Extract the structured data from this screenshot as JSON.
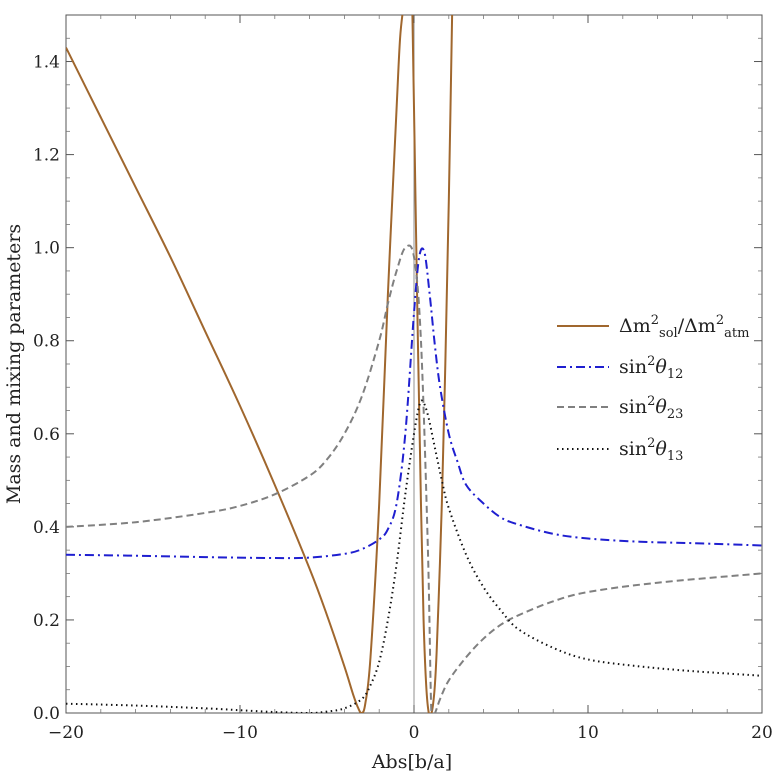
{
  "chart_data": {
    "type": "line",
    "title": "",
    "xlabel": "Abs[b/a]",
    "ylabel": "Mass and mixing parameters",
    "xlim": [
      -20,
      20
    ],
    "ylim": [
      0,
      1.5
    ],
    "x_ticks": [
      -20,
      -10,
      0,
      10,
      20
    ],
    "x_tick_labels": [
      "−20",
      "−10",
      "0",
      "10",
      "20"
    ],
    "y_ticks": [
      0,
      0.2,
      0.4,
      0.6,
      0.8,
      1.0,
      1.2,
      1.4
    ],
    "y_tick_labels": [
      "0.0",
      "0.2",
      "0.4",
      "0.6",
      "0.8",
      "1.0",
      "1.2",
      "1.4"
    ],
    "legend_position": "right",
    "series": [
      {
        "name": "mass-ratio",
        "legend_base1": "Δm",
        "legend_sup1": "2",
        "legend_sub1": "sol",
        "legend_mid": "/Δm",
        "legend_sup2": "2",
        "legend_sub2": "atm",
        "color": "#A0672E",
        "style": "solid",
        "segments": [
          {
            "x": [
              -20,
              -18,
              -16,
              -14,
              -12,
              -10,
              -8,
              -6,
              -5,
              -4,
              -3.5,
              -3.2,
              -3.0,
              -2.8,
              -2.5,
              -2.0,
              -1.5,
              -1.0,
              -0.8,
              -0.6
            ],
            "y": [
              1.43,
              1.28,
              1.13,
              0.98,
              0.82,
              0.66,
              0.49,
              0.31,
              0.21,
              0.1,
              0.04,
              0.01,
              0.0,
              0.02,
              0.12,
              0.45,
              0.9,
              1.3,
              1.45,
              1.52
            ]
          },
          {
            "x": [
              -0.1,
              0.0,
              0.2,
              0.4,
              0.55,
              0.7,
              0.85,
              1.0,
              1.1,
              1.2,
              1.3,
              1.45,
              1.6,
              1.8,
              2.0,
              2.2
            ],
            "y": [
              1.52,
              1.3,
              0.85,
              0.45,
              0.2,
              0.06,
              0.0,
              0.0,
              0.02,
              0.06,
              0.13,
              0.28,
              0.45,
              0.75,
              1.1,
              1.52
            ]
          }
        ]
      },
      {
        "name": "sin2theta12",
        "legend_base": "sin",
        "legend_sup": "2",
        "legend_theta": "θ",
        "legend_sub": "12",
        "color": "#1F1FD0",
        "style": "dashdot",
        "x": [
          -20,
          -16,
          -12,
          -8,
          -6,
          -4,
          -3,
          -2,
          -1.5,
          -1,
          -0.5,
          0,
          0.3,
          0.6,
          0.9,
          1.2,
          1.5,
          2,
          2.5,
          3,
          4,
          5,
          6,
          8,
          10,
          13,
          16,
          20
        ],
        "y": [
          0.34,
          0.338,
          0.335,
          0.333,
          0.334,
          0.342,
          0.352,
          0.373,
          0.395,
          0.45,
          0.6,
          0.86,
          0.98,
          0.99,
          0.9,
          0.79,
          0.7,
          0.6,
          0.54,
          0.49,
          0.45,
          0.42,
          0.405,
          0.385,
          0.375,
          0.368,
          0.365,
          0.36
        ]
      },
      {
        "name": "sin2theta23",
        "legend_base": "sin",
        "legend_sup": "2",
        "legend_theta": "θ",
        "legend_sub": "23",
        "color": "#808080",
        "style": "dashed",
        "x": [
          -20,
          -16,
          -12,
          -10,
          -8,
          -6,
          -5,
          -4,
          -3,
          -2,
          -1.5,
          -1,
          -0.5,
          0,
          0.4,
          0.8,
          1.0,
          1.2,
          1.5,
          2,
          3,
          4,
          5,
          6,
          8,
          10,
          14,
          20
        ],
        "y": [
          0.4,
          0.41,
          0.43,
          0.445,
          0.47,
          0.51,
          0.545,
          0.6,
          0.68,
          0.8,
          0.88,
          0.95,
          1.0,
          0.98,
          0.8,
          0.35,
          0.0,
          0.0,
          0.03,
          0.07,
          0.12,
          0.16,
          0.19,
          0.21,
          0.24,
          0.26,
          0.28,
          0.3
        ]
      },
      {
        "name": "sin2theta13",
        "legend_base": "sin",
        "legend_sup": "2",
        "legend_theta": "θ",
        "legend_sub": "13",
        "color": "#111111",
        "style": "dotted",
        "x": [
          -20,
          -16,
          -12,
          -10,
          -8,
          -6,
          -5,
          -4,
          -3,
          -2.5,
          -2,
          -1.5,
          -1,
          -0.5,
          0,
          0.3,
          0.5,
          0.8,
          1.2,
          1.6,
          2,
          3,
          4,
          5,
          6,
          8,
          10,
          13,
          16,
          20
        ],
        "y": [
          0.02,
          0.016,
          0.01,
          0.006,
          0.002,
          0.0,
          0.003,
          0.01,
          0.03,
          0.06,
          0.11,
          0.2,
          0.32,
          0.47,
          0.6,
          0.66,
          0.67,
          0.64,
          0.57,
          0.5,
          0.44,
          0.34,
          0.27,
          0.22,
          0.18,
          0.14,
          0.115,
          0.1,
          0.09,
          0.08
        ]
      }
    ]
  }
}
